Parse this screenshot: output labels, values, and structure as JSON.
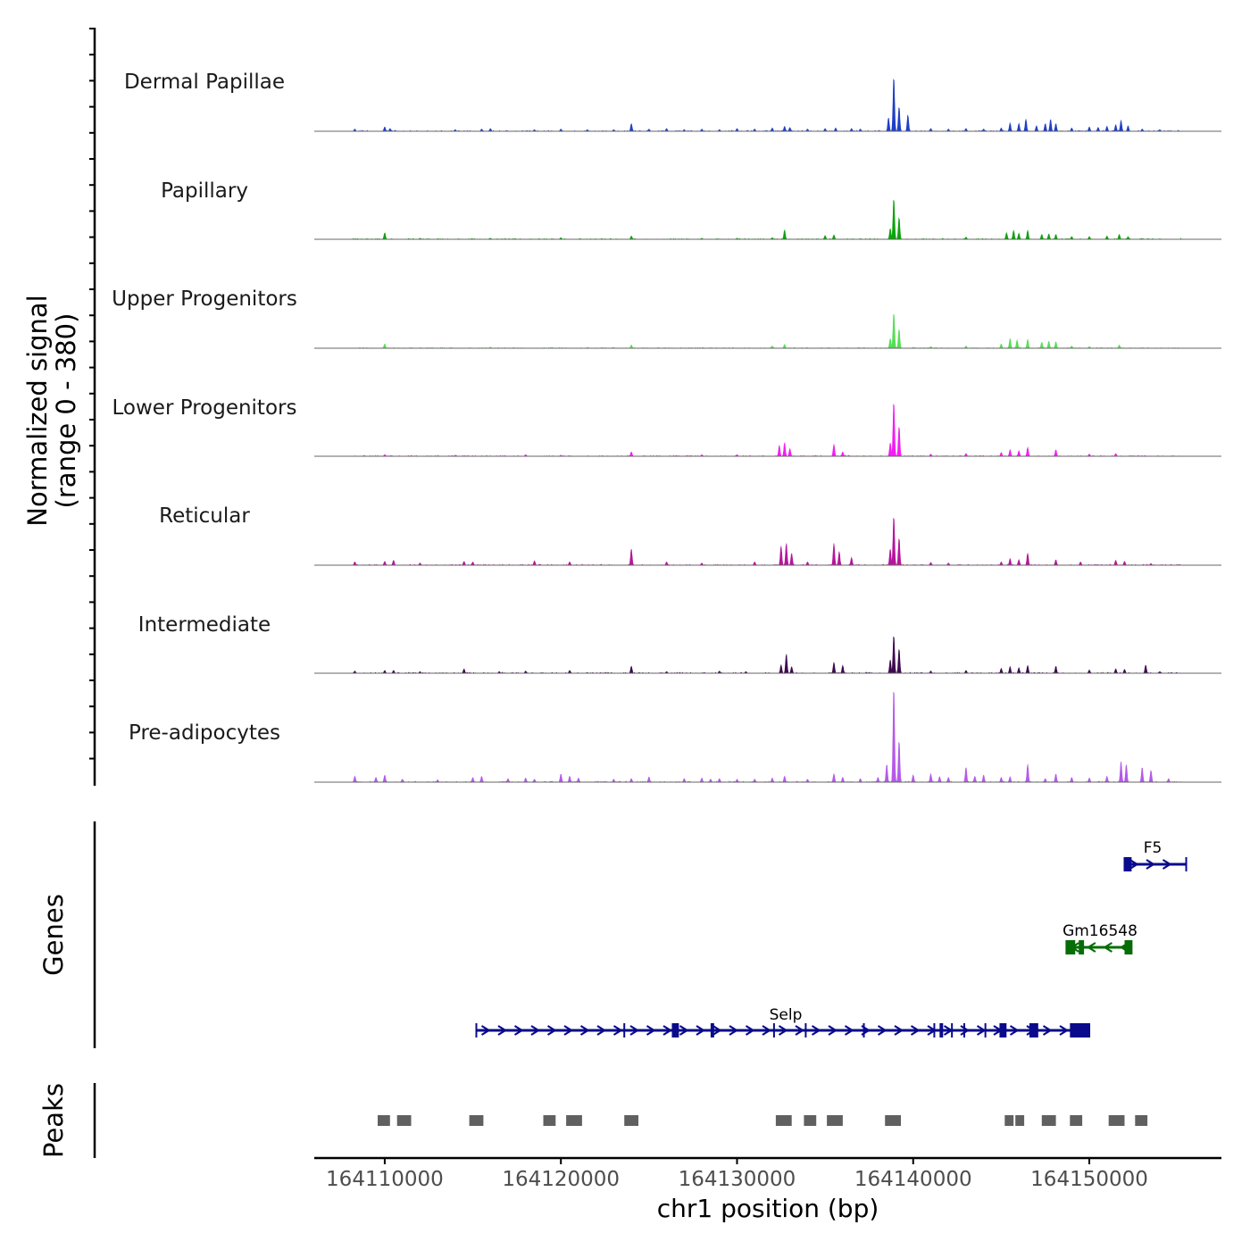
{
  "chart_data": {
    "type": "area",
    "title": "",
    "ylabel_line1": "Normalized signal",
    "ylabel_line2": "(range 0 - 380)",
    "signal_range": [
      0,
      380
    ],
    "xlabel": "chr1 position (bp)",
    "xlim": [
      164106000,
      164157500
    ],
    "x_ticks": [
      164110000,
      164120000,
      164130000,
      164140000,
      164150000
    ],
    "x_tick_labels": [
      "164110000",
      "164120000",
      "164130000",
      "164140000",
      "164150000"
    ],
    "track_panels": [
      "Genes",
      "Peaks"
    ],
    "series": [
      {
        "name": "Dermal Papillae",
        "color": "#1f3fc6",
        "peaks": [
          [
            164108300,
            4
          ],
          [
            164110000,
            8
          ],
          [
            164110300,
            5
          ],
          [
            164114000,
            3
          ],
          [
            164115500,
            4
          ],
          [
            164116000,
            5
          ],
          [
            164118500,
            3
          ],
          [
            164120000,
            4
          ],
          [
            164121500,
            3
          ],
          [
            164123000,
            3
          ],
          [
            164124000,
            14
          ],
          [
            164125000,
            4
          ],
          [
            164126000,
            5
          ],
          [
            164127000,
            3
          ],
          [
            164128000,
            4
          ],
          [
            164129000,
            3
          ],
          [
            164130000,
            5
          ],
          [
            164131000,
            4
          ],
          [
            164132000,
            6
          ],
          [
            164132700,
            9
          ],
          [
            164133000,
            7
          ],
          [
            164134000,
            4
          ],
          [
            164135000,
            5
          ],
          [
            164135600,
            6
          ],
          [
            164136500,
            5
          ],
          [
            164137000,
            4
          ],
          [
            164138600,
            25
          ],
          [
            164138900,
            100
          ],
          [
            164139200,
            45
          ],
          [
            164139700,
            30
          ],
          [
            164141000,
            5
          ],
          [
            164142000,
            4
          ],
          [
            164143000,
            5
          ],
          [
            164144000,
            4
          ],
          [
            164145000,
            6
          ],
          [
            164145500,
            15
          ],
          [
            164146000,
            14
          ],
          [
            164146400,
            22
          ],
          [
            164147000,
            10
          ],
          [
            164147500,
            14
          ],
          [
            164147800,
            22
          ],
          [
            164148100,
            14
          ],
          [
            164149000,
            6
          ],
          [
            164150000,
            8
          ],
          [
            164150500,
            7
          ],
          [
            164151000,
            9
          ],
          [
            164151500,
            12
          ],
          [
            164151800,
            20
          ],
          [
            164152200,
            10
          ],
          [
            164153000,
            4
          ],
          [
            164154000,
            3
          ]
        ]
      },
      {
        "name": "Papillary",
        "color": "#0ca30c",
        "peaks": [
          [
            164110000,
            12
          ],
          [
            164112000,
            2
          ],
          [
            164116000,
            2
          ],
          [
            164120000,
            3
          ],
          [
            164124000,
            6
          ],
          [
            164128000,
            2
          ],
          [
            164130000,
            2
          ],
          [
            164132000,
            3
          ],
          [
            164132700,
            17
          ],
          [
            164135000,
            7
          ],
          [
            164135500,
            8
          ],
          [
            164138700,
            20
          ],
          [
            164138900,
            75
          ],
          [
            164139200,
            40
          ],
          [
            164143000,
            4
          ],
          [
            164145300,
            12
          ],
          [
            164145700,
            16
          ],
          [
            164146000,
            11
          ],
          [
            164146500,
            16
          ],
          [
            164147300,
            9
          ],
          [
            164147700,
            10
          ],
          [
            164148100,
            9
          ],
          [
            164149000,
            5
          ],
          [
            164150000,
            5
          ],
          [
            164151000,
            6
          ],
          [
            164151700,
            9
          ],
          [
            164152200,
            5
          ]
        ]
      },
      {
        "name": "Upper Progenitors",
        "color": "#56de56",
        "peaks": [
          [
            164110000,
            8
          ],
          [
            164116000,
            2
          ],
          [
            164124000,
            6
          ],
          [
            164132000,
            4
          ],
          [
            164132700,
            7
          ],
          [
            164138700,
            18
          ],
          [
            164138900,
            65
          ],
          [
            164139200,
            35
          ],
          [
            164141000,
            3
          ],
          [
            164143000,
            4
          ],
          [
            164145000,
            8
          ],
          [
            164145500,
            18
          ],
          [
            164145900,
            15
          ],
          [
            164146500,
            16
          ],
          [
            164147300,
            11
          ],
          [
            164147700,
            13
          ],
          [
            164148100,
            12
          ],
          [
            164149000,
            4
          ],
          [
            164150000,
            3
          ],
          [
            164151700,
            6
          ]
        ]
      },
      {
        "name": "Lower Progenitors",
        "color": "#f21ef2",
        "peaks": [
          [
            164110000,
            3
          ],
          [
            164114000,
            2
          ],
          [
            164118000,
            3
          ],
          [
            164120000,
            2
          ],
          [
            164124000,
            8
          ],
          [
            164128000,
            3
          ],
          [
            164130000,
            3
          ],
          [
            164132400,
            20
          ],
          [
            164132700,
            25
          ],
          [
            164133000,
            14
          ],
          [
            164135500,
            22
          ],
          [
            164136000,
            8
          ],
          [
            164138700,
            25
          ],
          [
            164138900,
            100
          ],
          [
            164139200,
            55
          ],
          [
            164141000,
            4
          ],
          [
            164143000,
            5
          ],
          [
            164145000,
            7
          ],
          [
            164145500,
            12
          ],
          [
            164146000,
            10
          ],
          [
            164146500,
            16
          ],
          [
            164148100,
            12
          ],
          [
            164150000,
            4
          ],
          [
            164151500,
            5
          ]
        ]
      },
      {
        "name": "Reticular",
        "color": "#b5159c",
        "peaks": [
          [
            164108300,
            6
          ],
          [
            164110000,
            7
          ],
          [
            164110500,
            9
          ],
          [
            164112000,
            4
          ],
          [
            164114500,
            7
          ],
          [
            164115000,
            6
          ],
          [
            164118500,
            8
          ],
          [
            164120500,
            6
          ],
          [
            164124000,
            30
          ],
          [
            164126000,
            6
          ],
          [
            164128000,
            4
          ],
          [
            164131000,
            6
          ],
          [
            164132500,
            35
          ],
          [
            164132800,
            40
          ],
          [
            164133100,
            22
          ],
          [
            164134000,
            6
          ],
          [
            164135500,
            40
          ],
          [
            164135800,
            25
          ],
          [
            164136500,
            14
          ],
          [
            164138700,
            30
          ],
          [
            164138900,
            90
          ],
          [
            164139200,
            50
          ],
          [
            164141000,
            5
          ],
          [
            164142000,
            4
          ],
          [
            164145000,
            6
          ],
          [
            164145500,
            12
          ],
          [
            164146000,
            10
          ],
          [
            164146500,
            22
          ],
          [
            164148100,
            10
          ],
          [
            164149500,
            6
          ],
          [
            164151500,
            9
          ],
          [
            164152000,
            7
          ],
          [
            164153500,
            3
          ]
        ]
      },
      {
        "name": "Intermediate",
        "color": "#3d0a4f",
        "peaks": [
          [
            164108300,
            4
          ],
          [
            164110000,
            5
          ],
          [
            164110500,
            5
          ],
          [
            164112000,
            3
          ],
          [
            164114500,
            8
          ],
          [
            164116500,
            3
          ],
          [
            164118000,
            4
          ],
          [
            164120500,
            5
          ],
          [
            164124000,
            13
          ],
          [
            164126000,
            3
          ],
          [
            164129000,
            4
          ],
          [
            164130500,
            3
          ],
          [
            164132500,
            15
          ],
          [
            164132800,
            35
          ],
          [
            164133100,
            12
          ],
          [
            164135500,
            20
          ],
          [
            164136000,
            14
          ],
          [
            164138700,
            25
          ],
          [
            164138900,
            70
          ],
          [
            164139200,
            45
          ],
          [
            164141000,
            4
          ],
          [
            164143000,
            5
          ],
          [
            164145000,
            9
          ],
          [
            164145500,
            12
          ],
          [
            164146000,
            10
          ],
          [
            164146500,
            14
          ],
          [
            164148100,
            13
          ],
          [
            164150000,
            6
          ],
          [
            164151500,
            8
          ],
          [
            164152000,
            7
          ],
          [
            164153200,
            15
          ],
          [
            164154000,
            3
          ]
        ]
      },
      {
        "name": "Pre-adipocytes",
        "color": "#b55ae8",
        "peaks": [
          [
            164108300,
            10
          ],
          [
            164109500,
            8
          ],
          [
            164110000,
            12
          ],
          [
            164111000,
            5
          ],
          [
            164113000,
            4
          ],
          [
            164115000,
            8
          ],
          [
            164115500,
            10
          ],
          [
            164117000,
            6
          ],
          [
            164118000,
            7
          ],
          [
            164118500,
            5
          ],
          [
            164120000,
            14
          ],
          [
            164120500,
            10
          ],
          [
            164121000,
            7
          ],
          [
            164123000,
            5
          ],
          [
            164124000,
            6
          ],
          [
            164125000,
            9
          ],
          [
            164127000,
            6
          ],
          [
            164128000,
            7
          ],
          [
            164128500,
            5
          ],
          [
            164129000,
            6
          ],
          [
            164130000,
            5
          ],
          [
            164131000,
            5
          ],
          [
            164132000,
            7
          ],
          [
            164132700,
            10
          ],
          [
            164134000,
            5
          ],
          [
            164135500,
            14
          ],
          [
            164136000,
            8
          ],
          [
            164137000,
            6
          ],
          [
            164138000,
            8
          ],
          [
            164138500,
            30
          ],
          [
            164138900,
            160
          ],
          [
            164139200,
            70
          ],
          [
            164140000,
            12
          ],
          [
            164141000,
            14
          ],
          [
            164141500,
            9
          ],
          [
            164142000,
            8
          ],
          [
            164143000,
            25
          ],
          [
            164143500,
            10
          ],
          [
            164144000,
            12
          ],
          [
            164145000,
            8
          ],
          [
            164145500,
            9
          ],
          [
            164146500,
            30
          ],
          [
            164147500,
            6
          ],
          [
            164148100,
            14
          ],
          [
            164149000,
            8
          ],
          [
            164150000,
            7
          ],
          [
            164151000,
            10
          ],
          [
            164151800,
            35
          ],
          [
            164152100,
            30
          ],
          [
            164153000,
            25
          ],
          [
            164153500,
            20
          ],
          [
            164154500,
            6
          ]
        ]
      }
    ],
    "genes": [
      {
        "name": "F5",
        "color": "#0a0a8c",
        "strand": "+",
        "start": 164152000,
        "end": 164155500,
        "exons": [
          [
            164152000,
            164152400
          ]
        ]
      },
      {
        "name": "Gm16548",
        "color": "#076d07",
        "strand": "-",
        "start": 164148700,
        "end": 164152400,
        "exons": [
          [
            164148700,
            164149200
          ],
          [
            164149400,
            164149700
          ],
          [
            164152000,
            164152400
          ]
        ]
      },
      {
        "name": "Selp",
        "color": "#0a0a8c",
        "strand": "+",
        "start": 164115200,
        "end": 164150000,
        "exons": [
          [
            164126300,
            164126700
          ],
          [
            164128500,
            164128700
          ],
          [
            164141500,
            164141700
          ],
          [
            164144900,
            164145300
          ],
          [
            164146600,
            164147100
          ],
          [
            164148900,
            164150000
          ]
        ],
        "introns_marks": [
          164123600,
          164132100,
          164133900,
          164137200,
          164141200,
          164142200,
          164142900,
          164144100
        ]
      }
    ],
    "peak_regions": [
      [
        164109600,
        164110300
      ],
      [
        164110700,
        164111500
      ],
      [
        164114800,
        164115600
      ],
      [
        164119000,
        164119700
      ],
      [
        164120300,
        164121200
      ],
      [
        164123600,
        164124400
      ],
      [
        164132200,
        164133100
      ],
      [
        164133800,
        164134500
      ],
      [
        164135100,
        164136000
      ],
      [
        164138400,
        164139300
      ],
      [
        164145200,
        164145700
      ],
      [
        164145800,
        164146300
      ],
      [
        164147300,
        164148100
      ],
      [
        164148900,
        164149600
      ],
      [
        164151100,
        164152000
      ],
      [
        164152600,
        164153300
      ]
    ]
  }
}
